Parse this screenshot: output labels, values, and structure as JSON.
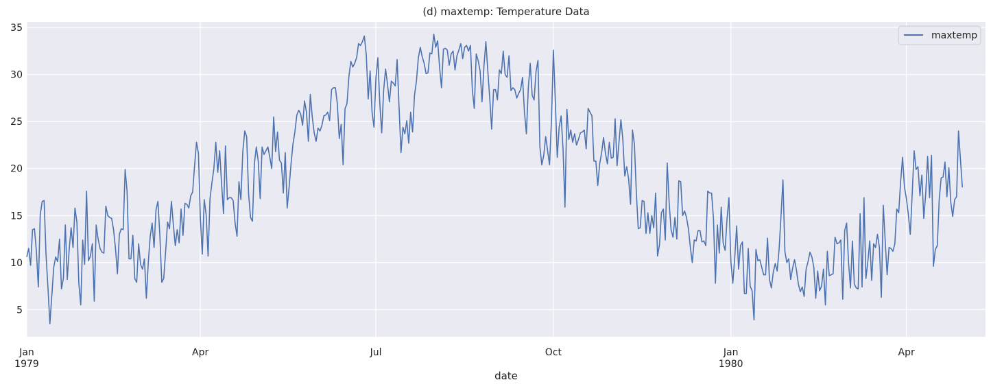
{
  "chart_data": {
    "type": "line",
    "title": "(d) maxtemp: Temperature Data",
    "xlabel": "date",
    "ylabel": "",
    "ylim": [
      2.1,
      35.6
    ],
    "xlim": [
      "1979-01-01",
      "1980-05-12"
    ],
    "y_ticks": [
      5,
      10,
      15,
      20,
      25,
      30,
      35
    ],
    "x_ticks": [
      {
        "date": "1979-01-01",
        "label": "Jan",
        "sublabel": "1979"
      },
      {
        "date": "1979-04-01",
        "label": "Apr",
        "sublabel": ""
      },
      {
        "date": "1979-07-01",
        "label": "Jul",
        "sublabel": ""
      },
      {
        "date": "1979-10-01",
        "label": "Oct",
        "sublabel": ""
      },
      {
        "date": "1980-01-01",
        "label": "Jan",
        "sublabel": "1980"
      },
      {
        "date": "1980-04-01",
        "label": "Apr",
        "sublabel": ""
      }
    ],
    "grid": true,
    "legend_position": "top-right",
    "series": [
      {
        "name": "maxtemp",
        "color": "#4c72b0",
        "start_date": "1979-01-01",
        "frequency": "daily",
        "values": [
          10.6,
          11.5,
          9.7,
          13.5,
          13.6,
          11.2,
          7.4,
          15.1,
          16.5,
          16.6,
          10.8,
          7.3,
          3.5,
          6.5,
          9.5,
          10.6,
          10.1,
          12.5,
          7.2,
          8.3,
          14.0,
          8.2,
          11.4,
          13.7,
          11.6,
          15.8,
          14.3,
          7.8,
          5.5,
          12.4,
          9.8,
          17.6,
          10.2,
          10.7,
          12.0,
          5.9,
          14.0,
          12.5,
          11.5,
          11.1,
          11.0,
          16.0,
          15.0,
          14.8,
          14.7,
          13.5,
          11.5,
          8.8,
          13.0,
          13.6,
          13.5,
          19.9,
          17.6,
          10.4,
          10.4,
          12.9,
          8.3,
          7.9,
          12.0,
          9.8,
          9.3,
          10.4,
          6.2,
          10.0,
          12.8,
          14.2,
          11.6,
          15.6,
          16.5,
          12.9,
          7.9,
          8.3,
          11.2,
          14.3,
          13.6,
          16.5,
          14.0,
          11.8,
          13.5,
          12.1,
          15.7,
          12.9,
          16.3,
          16.2,
          15.8,
          17.1,
          17.5,
          20.3,
          22.8,
          21.6,
          14.7,
          10.9,
          16.7,
          15.1,
          10.7,
          16.8,
          18.5,
          20.0,
          22.8,
          19.6,
          21.9,
          18.4,
          15.2,
          22.4,
          16.7,
          16.9,
          16.9,
          16.6,
          14.2,
          12.8,
          18.6,
          16.7,
          21.8,
          24.0,
          23.4,
          17.3,
          14.8,
          14.4,
          20.5,
          22.3,
          20.8,
          16.8,
          22.3,
          21.5,
          21.9,
          22.3,
          21.2,
          20.0,
          25.5,
          21.8,
          23.9,
          20.9,
          20.6,
          17.4,
          21.7,
          15.8,
          18.0,
          20.5,
          22.6,
          23.9,
          25.7,
          26.2,
          25.8,
          24.6,
          27.2,
          26.0,
          22.9,
          27.9,
          25.5,
          23.8,
          22.9,
          24.3,
          24.0,
          24.6,
          25.6,
          25.7,
          26.0,
          25.1,
          28.4,
          28.6,
          28.6,
          26.9,
          23.2,
          24.7,
          20.4,
          26.4,
          26.9,
          29.8,
          31.4,
          30.8,
          31.2,
          31.8,
          33.3,
          33.1,
          33.5,
          34.1,
          32.1,
          27.4,
          30.4,
          26.0,
          24.4,
          29.6,
          31.8,
          27.0,
          23.8,
          28.3,
          30.6,
          29.0,
          27.1,
          29.3,
          29.1,
          28.8,
          31.6,
          26.5,
          21.7,
          24.4,
          23.7,
          25.1,
          22.7,
          26.0,
          23.9,
          27.8,
          29.3,
          31.8,
          32.9,
          31.9,
          31.2,
          30.1,
          30.2,
          32.3,
          32.2,
          34.3,
          32.9,
          33.6,
          30.8,
          28.6,
          32.7,
          32.8,
          32.6,
          31.0,
          32.2,
          32.5,
          30.5,
          32.0,
          32.6,
          33.3,
          31.7,
          32.9,
          33.1,
          32.5,
          33.1,
          28.3,
          26.4,
          32.2,
          31.5,
          30.4,
          27.1,
          30.9,
          33.5,
          30.4,
          27.5,
          24.2,
          28.4,
          28.4,
          27.3,
          30.5,
          30.1,
          32.5,
          30.0,
          29.7,
          32.0,
          28.3,
          28.6,
          28.4,
          27.5,
          28.0,
          28.4,
          29.7,
          26.0,
          23.7,
          28.6,
          31.2,
          27.8,
          27.3,
          30.3,
          31.5,
          22.3,
          20.4,
          21.4,
          23.4,
          21.9,
          20.4,
          25.1,
          32.6,
          27.2,
          21.2,
          24.4,
          25.6,
          22.1,
          15.9,
          26.3,
          23.1,
          24.1,
          22.8,
          23.7,
          22.5,
          23.1,
          23.8,
          23.9,
          24.1,
          22.1,
          26.4,
          26.0,
          25.6,
          20.8,
          20.8,
          18.2,
          20.5,
          21.7,
          23.3,
          21.6,
          20.5,
          22.8,
          21.1,
          21.2,
          25.3,
          20.3,
          22.8,
          25.2,
          23.1,
          19.2,
          20.2,
          18.9,
          16.2,
          24.1,
          22.6,
          17.4,
          13.6,
          13.7,
          16.6,
          16.5,
          13.1,
          15.3,
          13.1,
          15.0,
          13.7,
          17.4,
          10.7,
          11.9,
          15.3,
          15.7,
          12.4,
          20.6,
          16.4,
          13.5,
          12.7,
          14.8,
          12.5,
          18.7,
          18.6,
          15.0,
          15.5,
          14.8,
          13.6,
          11.6,
          10.0,
          12.4,
          12.3,
          13.4,
          13.4,
          12.2,
          12.3,
          11.8,
          17.6,
          17.4,
          17.4,
          14.6,
          7.8,
          14.0,
          11.0,
          15.9,
          12.1,
          11.3,
          14.6,
          16.9,
          10.1,
          7.8,
          10.5,
          13.9,
          9.3,
          11.8,
          12.2,
          6.7,
          6.7,
          11.5,
          7.5,
          7.0,
          3.9,
          11.4,
          10.2,
          10.3,
          9.5,
          8.7,
          8.7,
          12.6,
          8.2,
          7.3,
          9.0,
          9.9,
          9.1,
          11.4,
          15.0,
          18.8,
          11.2,
          10.0,
          10.4,
          8.2,
          9.4,
          10.3,
          9.2,
          7.7,
          6.9,
          7.4,
          6.4,
          9.3,
          10.1,
          11.1,
          10.6,
          9.5,
          6.2,
          9.1,
          7.0,
          7.5,
          9.3,
          5.5,
          11.2,
          8.6,
          8.7,
          8.8,
          12.7,
          12.0,
          12.1,
          12.4,
          6.1,
          13.4,
          14.2,
          10.0,
          7.3,
          12.3,
          7.7,
          7.3,
          7.2,
          15.2,
          7.4,
          16.9,
          8.3,
          10.1,
          12.3,
          8.1,
          12.0,
          11.6,
          13.0,
          11.6,
          6.3,
          16.1,
          12.3,
          8.7,
          11.6,
          11.5,
          11.2,
          12.0,
          15.7,
          15.3,
          18.6,
          21.2,
          18.0,
          16.8,
          15.1,
          13.0,
          17.3,
          21.9,
          19.9,
          20.2,
          17.1,
          19.3,
          14.7,
          17.3,
          21.3,
          16.9,
          21.4,
          9.6,
          11.4,
          11.8,
          16.7,
          19.0,
          19.1,
          20.7,
          17.0,
          20.1,
          16.4,
          14.9,
          16.7,
          17.0,
          24.0,
          21.0,
          18.0
        ]
      }
    ]
  }
}
